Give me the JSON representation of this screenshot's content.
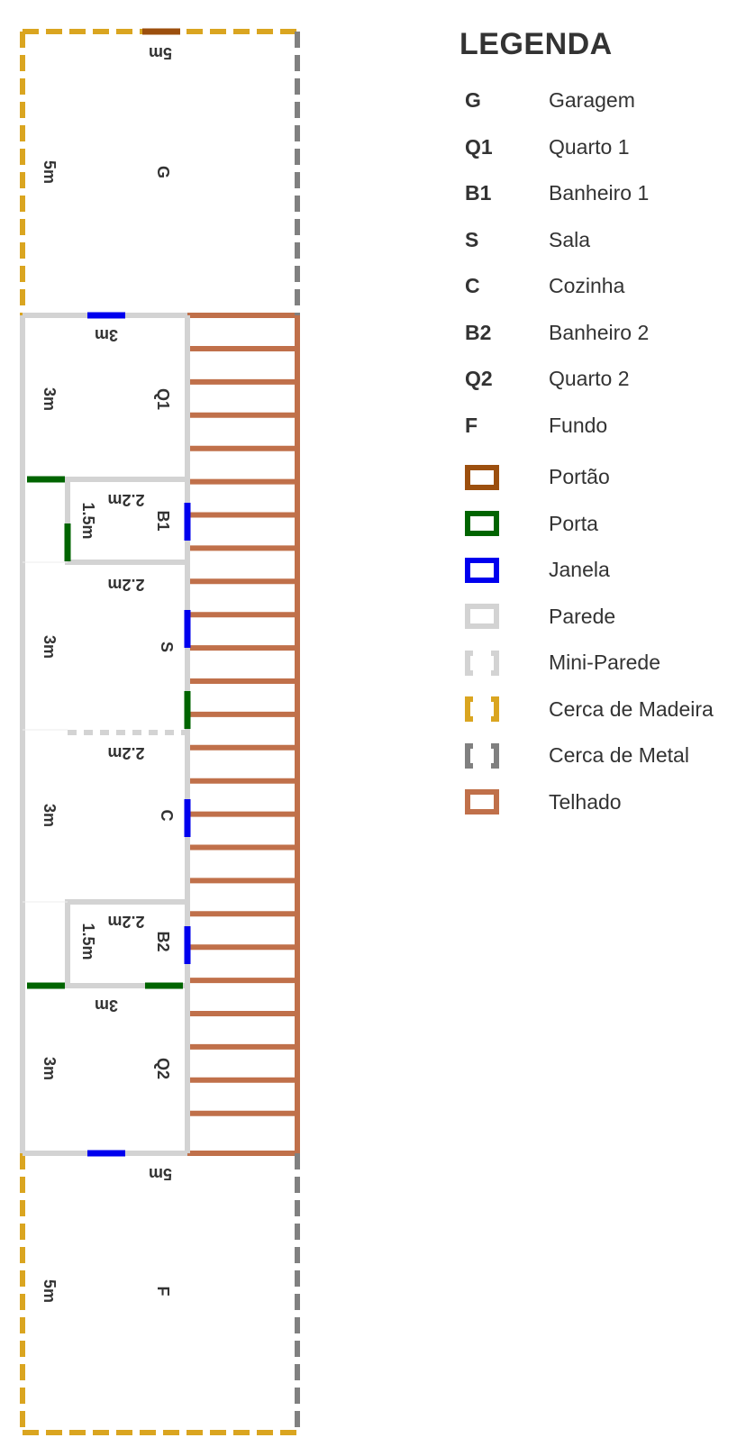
{
  "legend": {
    "title": "LEGENDA",
    "rooms": [
      {
        "code": "G",
        "label": "Garagem"
      },
      {
        "code": "Q1",
        "label": "Quarto 1"
      },
      {
        "code": "B1",
        "label": "Banheiro 1"
      },
      {
        "code": "S",
        "label": "Sala"
      },
      {
        "code": "C",
        "label": "Cozinha"
      },
      {
        "code": "B2",
        "label": "Banheiro 2"
      },
      {
        "code": "Q2",
        "label": "Quarto 2"
      },
      {
        "code": "F",
        "label": "Fundo"
      }
    ],
    "elements": [
      {
        "label": "Portão",
        "color": "#9C4F0E",
        "style": "solid"
      },
      {
        "label": "Porta",
        "color": "#006400",
        "style": "solid"
      },
      {
        "label": "Janela",
        "color": "#0000EE",
        "style": "solid"
      },
      {
        "label": "Parede",
        "color": "#D3D3D3",
        "style": "solid"
      },
      {
        "label": "Mini-Parede",
        "color": "#D3D3D3",
        "style": "dashed"
      },
      {
        "label": "Cerca de Madeira",
        "color": "#DAA520",
        "style": "dashed"
      },
      {
        "label": "Cerca de Metal",
        "color": "#808080",
        "style": "dashed"
      },
      {
        "label": "Telhado",
        "color": "#C0704A",
        "style": "solid"
      }
    ]
  },
  "plan": {
    "rooms": {
      "G": {
        "label": "G",
        "width_label": "5m",
        "depth_label": "5m"
      },
      "Q1": {
        "label": "Q1",
        "width_label": "3m",
        "depth_label": "3m"
      },
      "B1": {
        "label": "B1",
        "width_label": "2.2m",
        "depth_label": "1.5m"
      },
      "S": {
        "label": "S",
        "width_label": "2.2m",
        "depth_label": "3m"
      },
      "C": {
        "label": "C",
        "width_label": "2.2m",
        "depth_label": "3m"
      },
      "B2": {
        "label": "B2",
        "width_label": "2.2m",
        "depth_label": "1.5m"
      },
      "Q2": {
        "label": "Q2",
        "width_label": "3m",
        "depth_label": "3m"
      },
      "F": {
        "label": "F",
        "width_label": "5m",
        "depth_label": "5m"
      }
    }
  }
}
